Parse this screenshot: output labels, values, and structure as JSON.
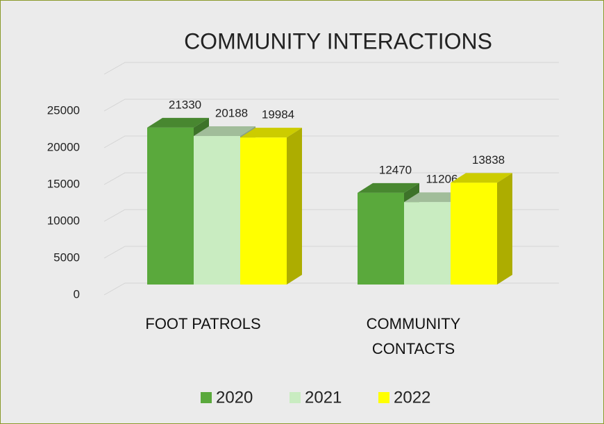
{
  "chart_data": {
    "type": "bar3d",
    "title": "COMMUNITY INTERACTIONS",
    "categories": [
      "FOOT PATROLS",
      "COMMUNITY CONTACTS"
    ],
    "series": [
      {
        "name": "2020",
        "color": "#5aa93c",
        "values": [
          21330,
          12470
        ]
      },
      {
        "name": "2021",
        "color": "#c9ecc1",
        "values": [
          20188,
          11206
        ]
      },
      {
        "name": "2022",
        "color": "#ffff00",
        "values": [
          19984,
          13838
        ]
      }
    ],
    "ylim": [
      0,
      30000
    ],
    "yticks": [
      0,
      5000,
      10000,
      15000,
      20000,
      25000
    ],
    "grid": true,
    "legend": "bottom"
  }
}
